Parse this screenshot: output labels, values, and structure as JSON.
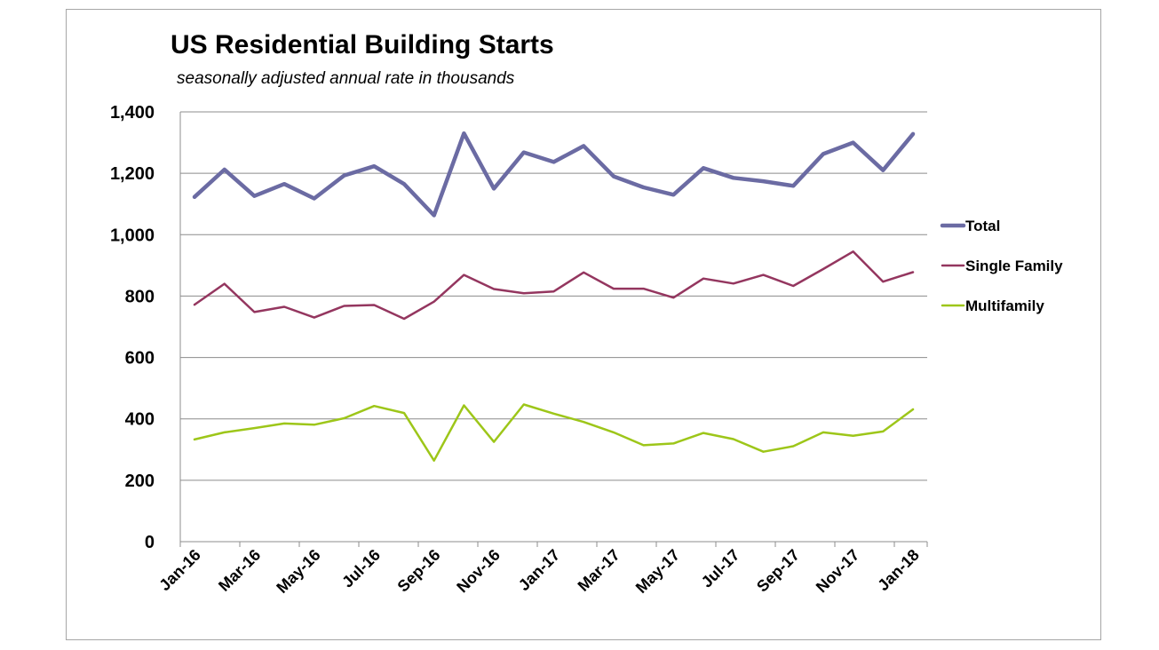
{
  "chart_data": {
    "type": "line",
    "title": "US Residential Building Starts",
    "subtitle": "seasonally adjusted annual rate in thousands",
    "xlabel": "",
    "ylabel": "",
    "ylim": [
      0,
      1400
    ],
    "y_ticks": [
      "0",
      "200",
      "400",
      "600",
      "800",
      "1,000",
      "1,200",
      "1,400"
    ],
    "y_tick_values": [
      0,
      200,
      400,
      600,
      800,
      1000,
      1200,
      1400
    ],
    "x": [
      "Jan-16",
      "Feb-16",
      "Mar-16",
      "Apr-16",
      "May-16",
      "Jun-16",
      "Jul-16",
      "Aug-16",
      "Sep-16",
      "Oct-16",
      "Nov-16",
      "Dec-16",
      "Jan-17",
      "Feb-17",
      "Mar-17",
      "Apr-17",
      "May-17",
      "Jun-17",
      "Jul-17",
      "Aug-17",
      "Sep-17",
      "Oct-17",
      "Nov-17",
      "Dec-17",
      "Jan-18"
    ],
    "x_tick_labels": [
      "Jan-16",
      "Mar-16",
      "May-16",
      "Jul-16",
      "Sep-16",
      "Nov-16",
      "Jan-17",
      "Mar-17",
      "May-17",
      "Jul-17",
      "Sep-17",
      "Nov-17",
      "Jan-18"
    ],
    "grid": true,
    "legend_position": "right",
    "series": [
      {
        "name": "Total",
        "color": "#6b6ba3",
        "values": [
          1123,
          1212,
          1126,
          1165,
          1118,
          1193,
          1223,
          1165,
          1063,
          1330,
          1150,
          1268,
          1237,
          1289,
          1190,
          1154,
          1130,
          1217,
          1185,
          1174,
          1159,
          1263,
          1300,
          1210,
          1328
        ]
      },
      {
        "name": "Single Family",
        "color": "#94365f",
        "values": [
          772,
          840,
          748,
          765,
          730,
          768,
          771,
          726,
          782,
          869,
          823,
          809,
          815,
          877,
          824,
          824,
          795,
          857,
          841,
          869,
          833,
          888,
          945,
          847,
          878
        ]
      },
      {
        "name": "Multifamily",
        "color": "#9dc619",
        "values": [
          333,
          356,
          370,
          385,
          381,
          402,
          442,
          419,
          264,
          444,
          325,
          447,
          417,
          390,
          356,
          314,
          320,
          354,
          334,
          293,
          311,
          356,
          345,
          359,
          431
        ]
      }
    ]
  }
}
